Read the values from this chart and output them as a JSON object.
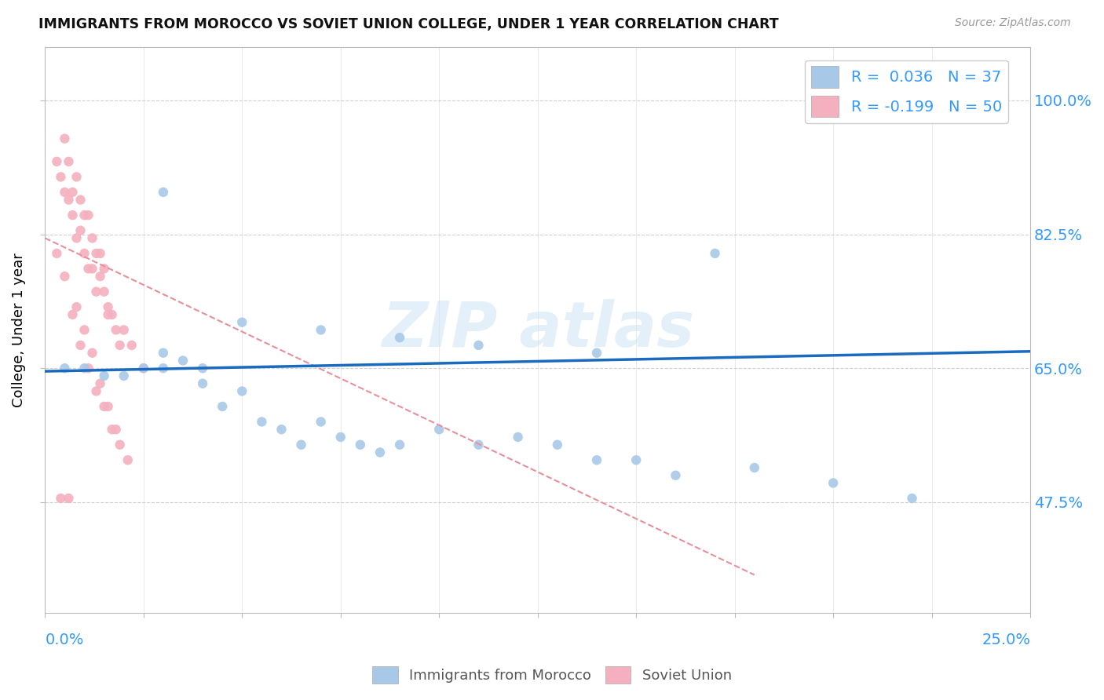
{
  "title": "IMMIGRANTS FROM MOROCCO VS SOVIET UNION COLLEGE, UNDER 1 YEAR CORRELATION CHART",
  "source": "Source: ZipAtlas.com",
  "ylabel": "College, Under 1 year",
  "yticks": [
    "47.5%",
    "65.0%",
    "82.5%",
    "100.0%"
  ],
  "ytick_values": [
    0.475,
    0.65,
    0.825,
    1.0
  ],
  "xlim": [
    0.0,
    0.25
  ],
  "ylim": [
    0.33,
    1.07
  ],
  "morocco_color": "#a8c8e8",
  "soviet_color": "#f4b0be",
  "morocco_trend_color": "#1a6bbf",
  "soviet_trend_color": "#e8909a",
  "morocco_x": [
    0.005,
    0.01,
    0.015,
    0.02,
    0.025,
    0.03,
    0.03,
    0.035,
    0.04,
    0.04,
    0.045,
    0.05,
    0.055,
    0.06,
    0.065,
    0.07,
    0.075,
    0.08,
    0.085,
    0.09,
    0.1,
    0.11,
    0.12,
    0.13,
    0.14,
    0.15,
    0.16,
    0.18,
    0.2,
    0.22,
    0.03,
    0.05,
    0.07,
    0.09,
    0.11,
    0.14,
    0.17
  ],
  "morocco_y": [
    0.65,
    0.65,
    0.64,
    0.64,
    0.65,
    0.67,
    0.65,
    0.66,
    0.63,
    0.65,
    0.6,
    0.62,
    0.58,
    0.57,
    0.55,
    0.58,
    0.56,
    0.55,
    0.54,
    0.55,
    0.57,
    0.55,
    0.56,
    0.55,
    0.53,
    0.53,
    0.51,
    0.52,
    0.5,
    0.48,
    0.88,
    0.71,
    0.7,
    0.69,
    0.68,
    0.67,
    0.8
  ],
  "soviet_x": [
    0.003,
    0.004,
    0.005,
    0.005,
    0.006,
    0.006,
    0.007,
    0.007,
    0.008,
    0.008,
    0.009,
    0.009,
    0.01,
    0.01,
    0.011,
    0.011,
    0.012,
    0.012,
    0.013,
    0.013,
    0.014,
    0.014,
    0.015,
    0.015,
    0.016,
    0.016,
    0.017,
    0.018,
    0.019,
    0.02,
    0.022,
    0.025,
    0.003,
    0.005,
    0.007,
    0.009,
    0.011,
    0.013,
    0.015,
    0.017,
    0.019,
    0.004,
    0.006,
    0.008,
    0.01,
    0.012,
    0.014,
    0.016,
    0.018,
    0.021
  ],
  "soviet_y": [
    0.92,
    0.9,
    0.95,
    0.88,
    0.92,
    0.87,
    0.88,
    0.85,
    0.9,
    0.82,
    0.87,
    0.83,
    0.85,
    0.8,
    0.85,
    0.78,
    0.82,
    0.78,
    0.8,
    0.75,
    0.8,
    0.77,
    0.78,
    0.75,
    0.72,
    0.73,
    0.72,
    0.7,
    0.68,
    0.7,
    0.68,
    0.65,
    0.8,
    0.77,
    0.72,
    0.68,
    0.65,
    0.62,
    0.6,
    0.57,
    0.55,
    0.48,
    0.48,
    0.73,
    0.7,
    0.67,
    0.63,
    0.6,
    0.57,
    0.53
  ]
}
